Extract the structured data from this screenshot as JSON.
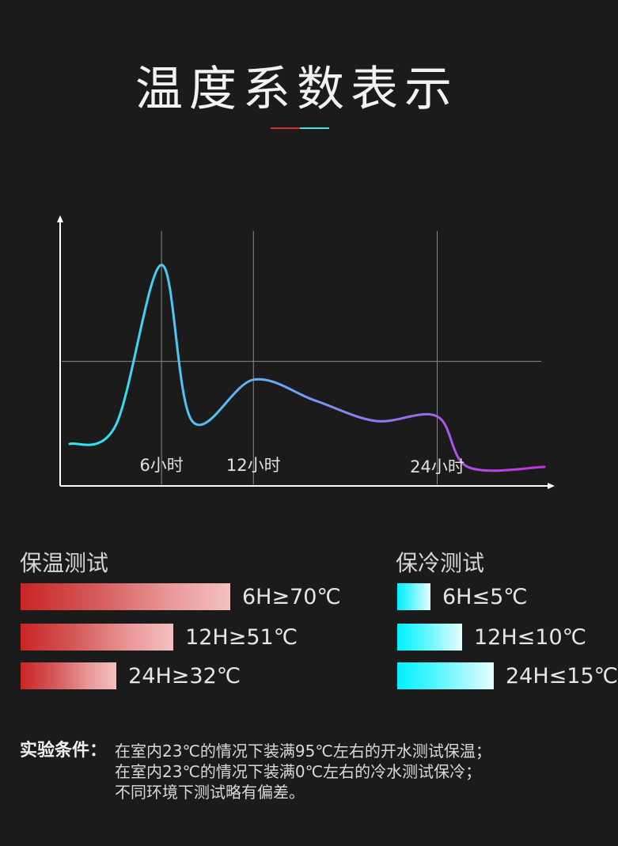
{
  "page": {
    "title": "温度系数表示"
  },
  "chart_data": {
    "type": "line",
    "x_ticks": [
      "6小时",
      "12小时",
      "24小时"
    ],
    "series": [
      {
        "points": [
          {
            "x": 0,
            "y": 10
          },
          {
            "x": 3,
            "y": 18
          },
          {
            "x": 6,
            "y": 88
          },
          {
            "x": 8,
            "y": 20
          },
          {
            "x": 12,
            "y": 38
          },
          {
            "x": 16,
            "y": 29
          },
          {
            "x": 20,
            "y": 20
          },
          {
            "x": 24,
            "y": 22
          },
          {
            "x": 26,
            "y": 0
          },
          {
            "x": 31,
            "y": 0
          }
        ]
      }
    ],
    "grid": {
      "vertical_at": [
        6,
        12,
        24
      ],
      "horizontal_at": [
        46
      ]
    },
    "colors": {
      "start": "#2fe7f0",
      "mid": "#6aa8f4",
      "end": "#c92ddf"
    }
  },
  "heat_test": {
    "title": "保温测试",
    "items": [
      {
        "label": "6H≥70℃",
        "value": 70
      },
      {
        "label": "12H≥51℃",
        "value": 51
      },
      {
        "label": "24H≥32℃",
        "value": 32
      }
    ],
    "colors": [
      "#c92525",
      "#f4c1c1"
    ]
  },
  "cold_test": {
    "title": "保冷测试",
    "items": [
      {
        "label": "6H≤5℃",
        "value": 5
      },
      {
        "label": "12H≤10℃",
        "value": 10
      },
      {
        "label": "24H≤15℃",
        "value": 15
      }
    ],
    "colors": [
      "#00f0ff",
      "#e5fefe"
    ]
  },
  "footer": {
    "label": "实验条件：",
    "lines": [
      "在室内23℃的情况下装满95℃左右的开水测试保温；",
      "在室内23℃的情况下装满0℃左右的冷水测试保冷；",
      "不同环境下测试略有偏差。"
    ]
  }
}
